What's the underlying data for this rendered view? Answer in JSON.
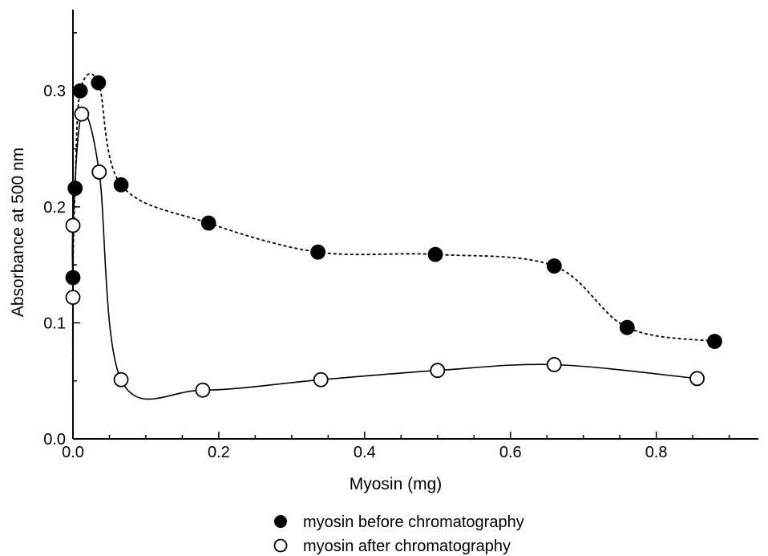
{
  "chart_data": {
    "type": "scatter",
    "title": "",
    "xlabel": "Myosin (mg)",
    "ylabel": "Absorbance at 500 nm",
    "xlim": [
      0,
      0.94
    ],
    "ylim": [
      0,
      0.37
    ],
    "x_ticks": [
      0.0,
      0.2,
      0.4,
      0.6,
      0.8
    ],
    "x_tick_labels": [
      "0.0",
      "0.2",
      "0.4",
      "0.6",
      "0.8"
    ],
    "y_ticks": [
      0.0,
      0.1,
      0.2,
      0.3
    ],
    "y_tick_labels": [
      "0.0",
      "0.1",
      "0.2",
      "0.3"
    ],
    "grid": false,
    "legend_position": "bottom-center",
    "series": [
      {
        "name": "myosin before chromatography",
        "marker": "filled-circle",
        "line_style": "dashed",
        "color": "#000000",
        "points": [
          {
            "x": 0.0,
            "y": 0.139
          },
          {
            "x": 0.003,
            "y": 0.216
          },
          {
            "x": 0.01,
            "y": 0.3
          },
          {
            "x": 0.035,
            "y": 0.307
          },
          {
            "x": 0.066,
            "y": 0.219
          },
          {
            "x": 0.186,
            "y": 0.186
          },
          {
            "x": 0.336,
            "y": 0.161
          },
          {
            "x": 0.497,
            "y": 0.159
          },
          {
            "x": 0.66,
            "y": 0.149
          },
          {
            "x": 0.76,
            "y": 0.096
          },
          {
            "x": 0.88,
            "y": 0.084
          }
        ]
      },
      {
        "name": "myosin after chromatography",
        "marker": "open-circle",
        "line_style": "solid",
        "color": "#000000",
        "points": [
          {
            "x": 0.0,
            "y": 0.122
          },
          {
            "x": 0.0,
            "y": 0.184
          },
          {
            "x": 0.012,
            "y": 0.28
          },
          {
            "x": 0.036,
            "y": 0.23
          },
          {
            "x": 0.066,
            "y": 0.051
          },
          {
            "x": 0.178,
            "y": 0.042
          },
          {
            "x": 0.34,
            "y": 0.051
          },
          {
            "x": 0.5,
            "y": 0.059
          },
          {
            "x": 0.66,
            "y": 0.064
          },
          {
            "x": 0.856,
            "y": 0.052
          }
        ]
      }
    ]
  }
}
